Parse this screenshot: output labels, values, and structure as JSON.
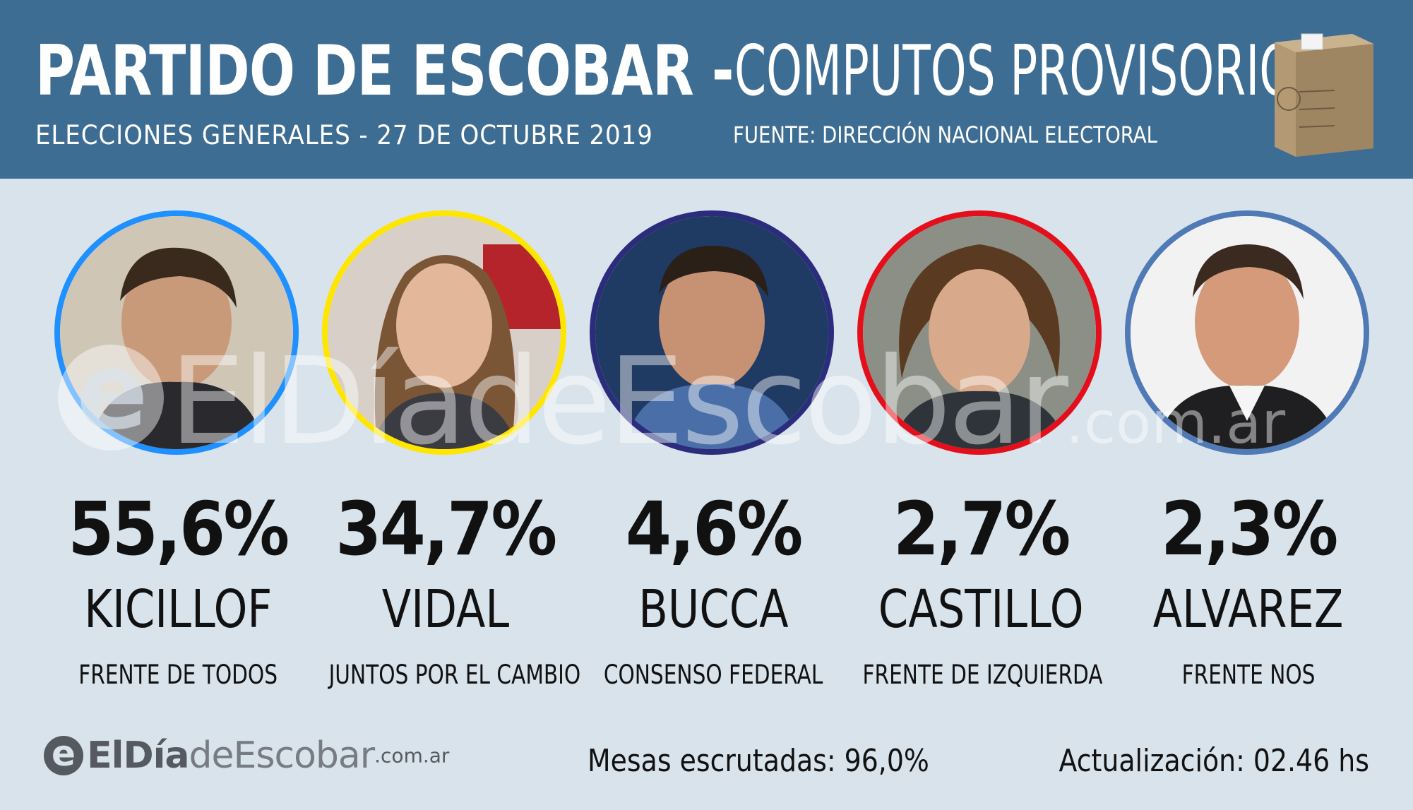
{
  "header": {
    "title_bold": "PARTIDO DE ESCOBAR -",
    "title_light": "COMPUTOS PROVISORIOS",
    "subtitle": "ELECCIONES GENERALES - 27 DE OCTUBRE 2019",
    "source": "FUENTE: DIRECCIÓN NACIONAL ELECTORAL"
  },
  "candidates": [
    {
      "percent": "55,6%",
      "name": "KICILLOF",
      "party": "FRENTE DE TODOS",
      "ring_color": "#1e90ff"
    },
    {
      "percent": "34,7%",
      "name": "VIDAL",
      "party": "JUNTOS POR EL CAMBIO",
      "ring_color": "#ffe600"
    },
    {
      "percent": "4,6%",
      "name": "BUCCA",
      "party": "CONSENSO FEDERAL",
      "ring_color": "#2b2d7c"
    },
    {
      "percent": "2,7%",
      "name": "CASTILLO",
      "party": "FRENTE DE IZQUIERDA",
      "ring_color": "#e3101b"
    },
    {
      "percent": "2,3%",
      "name": "ALVAREZ",
      "party": "FRENTE NOS",
      "ring_color": "#4f7ab6"
    }
  ],
  "watermark": {
    "main": "ElDíadeEscobar",
    "domain": ".com.ar"
  },
  "footer": {
    "logo_bold": "ElDía",
    "logo_light": "deEscobar",
    "logo_domain": ".com.ar",
    "mesas": "Mesas escrutadas: 96,0%",
    "update": "Actualización: 02.46 hs"
  },
  "colors": {
    "header_bg": "#3e6d93",
    "page_bg": "#d9e3ec"
  }
}
